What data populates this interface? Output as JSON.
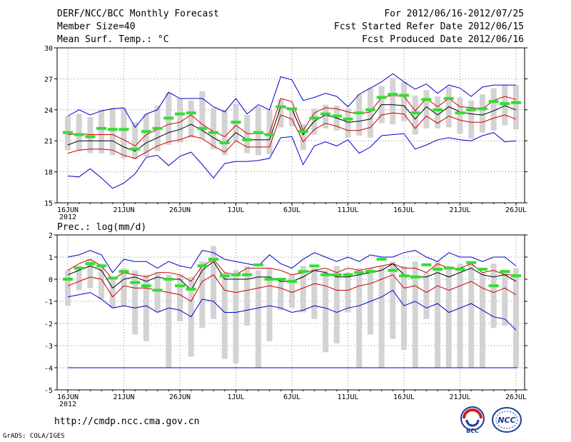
{
  "header": {
    "title": "DERF/NCC/BCC Monthly Forecast",
    "member_size": "Member Size=40",
    "variable_top": "Mean Surf. Temp.: °C",
    "period": "For 2012/06/16-2012/07/25",
    "fcst_started": "Fcst Started Refer Date 2012/06/15",
    "fcst_produced": "Fcst Produced Date 2012/06/16"
  },
  "footer": {
    "url": "http://cmdp.ncc.cma.gov.cn",
    "grads_credit": "GrADS: COLA/IGES",
    "logo_bcc": "BCC",
    "logo_ncc": "NCC"
  },
  "colors": {
    "envelope": "#0000cc",
    "quartile": "#cc0000",
    "mean": "#000000",
    "box": "#d3d3d3",
    "median": "#33dd33",
    "grid": "#888888"
  },
  "chart_data": [
    {
      "type": "line",
      "title": "Mean Surf. Temp.: °C",
      "ylim": [
        15,
        30
      ],
      "yticks": [
        15,
        18,
        21,
        24,
        27,
        30
      ],
      "xlim": [
        1,
        41
      ],
      "xticks": [
        {
          "day": 1,
          "label": "16JUN",
          "sub": "2012"
        },
        {
          "day": 6,
          "label": "21JUN"
        },
        {
          "day": 11,
          "label": "26JUN"
        },
        {
          "day": 16,
          "label": "1JUL"
        },
        {
          "day": 21,
          "label": "6JUL"
        },
        {
          "day": 26,
          "label": "11JUL"
        },
        {
          "day": 31,
          "label": "16JUL"
        },
        {
          "day": 36,
          "label": "21JUL"
        },
        {
          "day": 41,
          "label": "26JUL"
        }
      ],
      "series": [
        {
          "name": "max",
          "values": [
            23.4,
            24.0,
            23.5,
            23.9,
            24.1,
            24.2,
            22.3,
            23.6,
            24.0,
            25.7,
            25.1,
            25.1,
            25.1,
            24.3,
            23.8,
            25.1,
            23.6,
            24.5,
            24.0,
            27.2,
            26.9,
            24.9,
            25.2,
            25.6,
            25.3,
            24.3,
            25.5,
            26.1,
            26.7,
            27.5,
            26.7,
            26.0,
            26.5,
            25.6,
            26.4,
            26.1,
            25.3,
            26.2,
            26.4,
            26.4,
            26.4
          ]
        },
        {
          "name": "q_upper",
          "values": [
            21.6,
            21.7,
            21.6,
            21.6,
            21.6,
            21.1,
            20.5,
            21.6,
            22.1,
            22.6,
            22.8,
            23.5,
            22.6,
            21.9,
            21.4,
            22.5,
            21.7,
            21.7,
            21.7,
            25.1,
            24.8,
            22.0,
            23.7,
            24.2,
            24.1,
            23.8,
            23.6,
            23.8,
            25.2,
            25.4,
            25.3,
            23.9,
            25.1,
            24.3,
            25.1,
            24.3,
            24.2,
            24.1,
            24.9,
            25.3,
            25.0
          ]
        },
        {
          "name": "mean",
          "values": [
            20.6,
            21.0,
            21.0,
            21.0,
            21.0,
            20.4,
            20.0,
            20.8,
            21.3,
            21.8,
            22.1,
            22.6,
            22.0,
            21.3,
            20.7,
            21.8,
            21.1,
            21.1,
            21.1,
            24.3,
            24.1,
            21.6,
            22.9,
            23.5,
            23.2,
            22.8,
            22.9,
            23.1,
            24.5,
            24.5,
            24.4,
            23.1,
            24.3,
            23.5,
            24.3,
            23.8,
            23.6,
            23.5,
            23.9,
            24.4,
            24.0
          ]
        },
        {
          "name": "q_lower",
          "values": [
            19.8,
            20.1,
            20.2,
            20.2,
            20.1,
            19.6,
            19.3,
            19.9,
            20.5,
            20.9,
            21.1,
            21.5,
            21.2,
            20.5,
            19.9,
            21.0,
            20.4,
            20.4,
            20.4,
            23.5,
            23.1,
            20.9,
            22.1,
            22.7,
            22.4,
            22.0,
            22.0,
            22.3,
            23.5,
            23.7,
            23.6,
            22.2,
            23.4,
            22.7,
            23.4,
            23.0,
            22.8,
            22.8,
            23.2,
            23.5,
            23.1
          ]
        },
        {
          "name": "min",
          "values": [
            17.6,
            17.5,
            18.3,
            17.4,
            16.4,
            16.9,
            17.8,
            19.4,
            19.6,
            18.6,
            19.5,
            19.9,
            18.7,
            17.4,
            18.8,
            19.0,
            19.0,
            19.1,
            19.3,
            21.3,
            21.4,
            18.7,
            20.5,
            20.9,
            20.5,
            21.1,
            19.8,
            20.4,
            21.5,
            21.6,
            21.7,
            20.2,
            20.6,
            21.1,
            21.3,
            21.1,
            21.0,
            21.5,
            21.8,
            20.9,
            21.0
          ]
        }
      ],
      "boxes": {
        "top": [
          23.4,
          23.6,
          23.3,
          24.0,
          24.2,
          24.2,
          22.8,
          23.6,
          24.4,
          25.7,
          25.1,
          24.9,
          25.8,
          24.2,
          24.0,
          24.6,
          23.5,
          24.3,
          24.0,
          25.0,
          24.2,
          22.6,
          24.1,
          24.5,
          24.4,
          24.1,
          25.5,
          26.1,
          26.3,
          27.1,
          26.7,
          25.4,
          25.9,
          25.3,
          26.2,
          25.2,
          24.9,
          25.5,
          26.1,
          26.4,
          26.4
        ],
        "bottom": [
          20.1,
          20.0,
          19.8,
          19.8,
          19.6,
          19.3,
          19.2,
          19.5,
          20.0,
          20.6,
          20.8,
          21.3,
          21.2,
          20.2,
          19.6,
          20.9,
          19.8,
          19.6,
          19.7,
          22.3,
          22.4,
          20.1,
          21.6,
          22.2,
          22.0,
          21.3,
          21.5,
          21.3,
          22.7,
          22.6,
          22.9,
          21.6,
          22.2,
          22.2,
          22.3,
          21.7,
          21.2,
          21.8,
          22.0,
          22.5,
          22.1
        ],
        "median": [
          21.8,
          21.6,
          21.4,
          22.2,
          22.1,
          22.1,
          20.2,
          21.9,
          22.2,
          23.2,
          23.6,
          23.7,
          22.2,
          21.8,
          20.8,
          22.8,
          21.1,
          21.8,
          21.6,
          24.3,
          24.1,
          21.9,
          23.2,
          23.6,
          23.4,
          23.1,
          23.7,
          24.0,
          25.2,
          25.5,
          25.4,
          23.7,
          25.0,
          24.0,
          25.1,
          23.7,
          24.0,
          24.1,
          24.8,
          24.6,
          24.7
        ]
      }
    },
    {
      "type": "line",
      "title": "Prec.: log(mm/d)",
      "ylim": [
        -5,
        2
      ],
      "yticks": [
        -5,
        -4,
        -3,
        -2,
        -1,
        0,
        1,
        2
      ],
      "xlim": [
        1,
        41
      ],
      "xticks": [
        {
          "day": 1,
          "label": "16JUN",
          "sub": "2012"
        },
        {
          "day": 6,
          "label": "21JUN"
        },
        {
          "day": 11,
          "label": "26JUN"
        },
        {
          "day": 16,
          "label": "1JUL"
        },
        {
          "day": 21,
          "label": "6JUL"
        },
        {
          "day": 26,
          "label": "11JUL"
        },
        {
          "day": 31,
          "label": "16JUL"
        },
        {
          "day": 36,
          "label": "21JUL"
        },
        {
          "day": 41,
          "label": "26JUL"
        }
      ],
      "series": [
        {
          "name": "max",
          "values": [
            1.0,
            1.1,
            1.3,
            1.1,
            0.3,
            0.9,
            0.8,
            0.8,
            0.5,
            0.8,
            0.6,
            0.5,
            1.3,
            1.2,
            0.9,
            0.8,
            0.7,
            0.6,
            1.1,
            0.7,
            0.5,
            0.9,
            1.2,
            1.0,
            0.8,
            1.0,
            0.8,
            1.1,
            1.0,
            1.0,
            1.2,
            1.3,
            1.0,
            0.8,
            1.2,
            1.0,
            1.0,
            0.8,
            1.0,
            1.0,
            0.6
          ]
        },
        {
          "name": "q_upper",
          "values": [
            0.4,
            0.7,
            0.9,
            0.6,
            0.0,
            0.3,
            0.2,
            0.1,
            0.3,
            0.3,
            0.2,
            -0.1,
            0.6,
            0.9,
            0.3,
            0.2,
            0.5,
            0.5,
            0.5,
            0.4,
            0.2,
            0.3,
            0.4,
            0.5,
            0.3,
            0.5,
            0.4,
            0.5,
            0.6,
            0.7,
            0.5,
            0.5,
            0.3,
            0.7,
            0.5,
            0.5,
            0.7,
            0.3,
            0.4,
            0.2,
            0.2
          ]
        },
        {
          "name": "mean",
          "values": [
            0.2,
            0.4,
            0.6,
            0.4,
            -0.4,
            0.0,
            0.1,
            -0.1,
            0.1,
            0.0,
            0.0,
            -0.5,
            0.4,
            0.8,
            0.0,
            0.0,
            0.0,
            0.1,
            0.1,
            -0.1,
            -0.1,
            0.1,
            0.4,
            0.3,
            0.1,
            0.1,
            0.2,
            0.3,
            0.4,
            0.7,
            0.2,
            0.1,
            0.1,
            0.3,
            0.1,
            0.3,
            0.5,
            0.2,
            0.1,
            0.2,
            -0.1
          ]
        },
        {
          "name": "q_lower",
          "values": [
            -0.3,
            -0.1,
            0.1,
            0.0,
            -0.8,
            -0.3,
            -0.4,
            -0.4,
            -0.5,
            -0.6,
            -0.7,
            -1.0,
            -0.1,
            0.2,
            -0.5,
            -0.6,
            -0.5,
            -0.4,
            -0.3,
            -0.4,
            -0.6,
            -0.4,
            -0.2,
            -0.3,
            -0.5,
            -0.5,
            -0.3,
            -0.2,
            0.0,
            0.2,
            -0.4,
            -0.3,
            -0.6,
            -0.3,
            -0.5,
            -0.3,
            -0.1,
            -0.4,
            -0.6,
            -0.4,
            -0.7
          ]
        },
        {
          "name": "min",
          "values": [
            -0.8,
            -0.7,
            -0.6,
            -0.9,
            -1.3,
            -1.2,
            -1.3,
            -1.2,
            -1.5,
            -1.3,
            -1.4,
            -1.7,
            -0.9,
            -1.0,
            -1.5,
            -1.5,
            -1.4,
            -1.3,
            -1.2,
            -1.3,
            -1.5,
            -1.4,
            -1.2,
            -1.3,
            -1.5,
            -1.3,
            -1.2,
            -1.0,
            -0.8,
            -0.5,
            -1.2,
            -1.0,
            -1.3,
            -1.1,
            -1.5,
            -1.3,
            -1.1,
            -1.4,
            -1.7,
            -1.8,
            -2.3
          ]
        }
      ],
      "boxes": {
        "top": [
          0.4,
          0.6,
          0.9,
          0.7,
          0.0,
          0.5,
          0.4,
          0.2,
          0.3,
          0.2,
          0.2,
          0.1,
          0.8,
          1.5,
          0.3,
          0.4,
          0.6,
          0.4,
          0.5,
          0.0,
          0.2,
          0.6,
          0.5,
          0.4,
          0.6,
          0.3,
          0.5,
          0.5,
          0.6,
          0.8,
          0.6,
          0.8,
          0.3,
          0.8,
          0.6,
          0.7,
          0.7,
          0.3,
          0.7,
          0.4,
          0.5
        ],
        "bottom": [
          -1.2,
          -0.5,
          -0.4,
          -0.9,
          -1.3,
          -1.2,
          -2.5,
          -2.8,
          -1.5,
          -4.0,
          -1.9,
          -3.5,
          -2.2,
          -1.8,
          -3.6,
          -3.8,
          -2.1,
          -4.0,
          -2.8,
          -1.4,
          -1.3,
          -1.5,
          -1.8,
          -3.3,
          -2.9,
          -1.5,
          -4.0,
          -2.5,
          -4.0,
          -2.7,
          -3.2,
          -4.0,
          -1.8,
          -4.0,
          -4.0,
          -4.0,
          -4.0,
          -4.0,
          -2.2,
          -2.1,
          -4.0
        ],
        "median": [
          0.0,
          0.5,
          0.7,
          0.6,
          0.05,
          0.35,
          -0.15,
          -0.3,
          -0.5,
          0.0,
          -0.3,
          -0.45,
          0.6,
          0.9,
          0.15,
          0.2,
          0.2,
          0.65,
          0.0,
          0.0,
          -0.1,
          0.35,
          0.6,
          0.2,
          0.2,
          0.2,
          0.3,
          0.35,
          0.9,
          0.4,
          0.15,
          0.1,
          0.65,
          0.45,
          0.5,
          0.45,
          0.75,
          0.45,
          -0.3,
          0.35,
          0.15
        ]
      },
      "baseline": -4
    }
  ]
}
